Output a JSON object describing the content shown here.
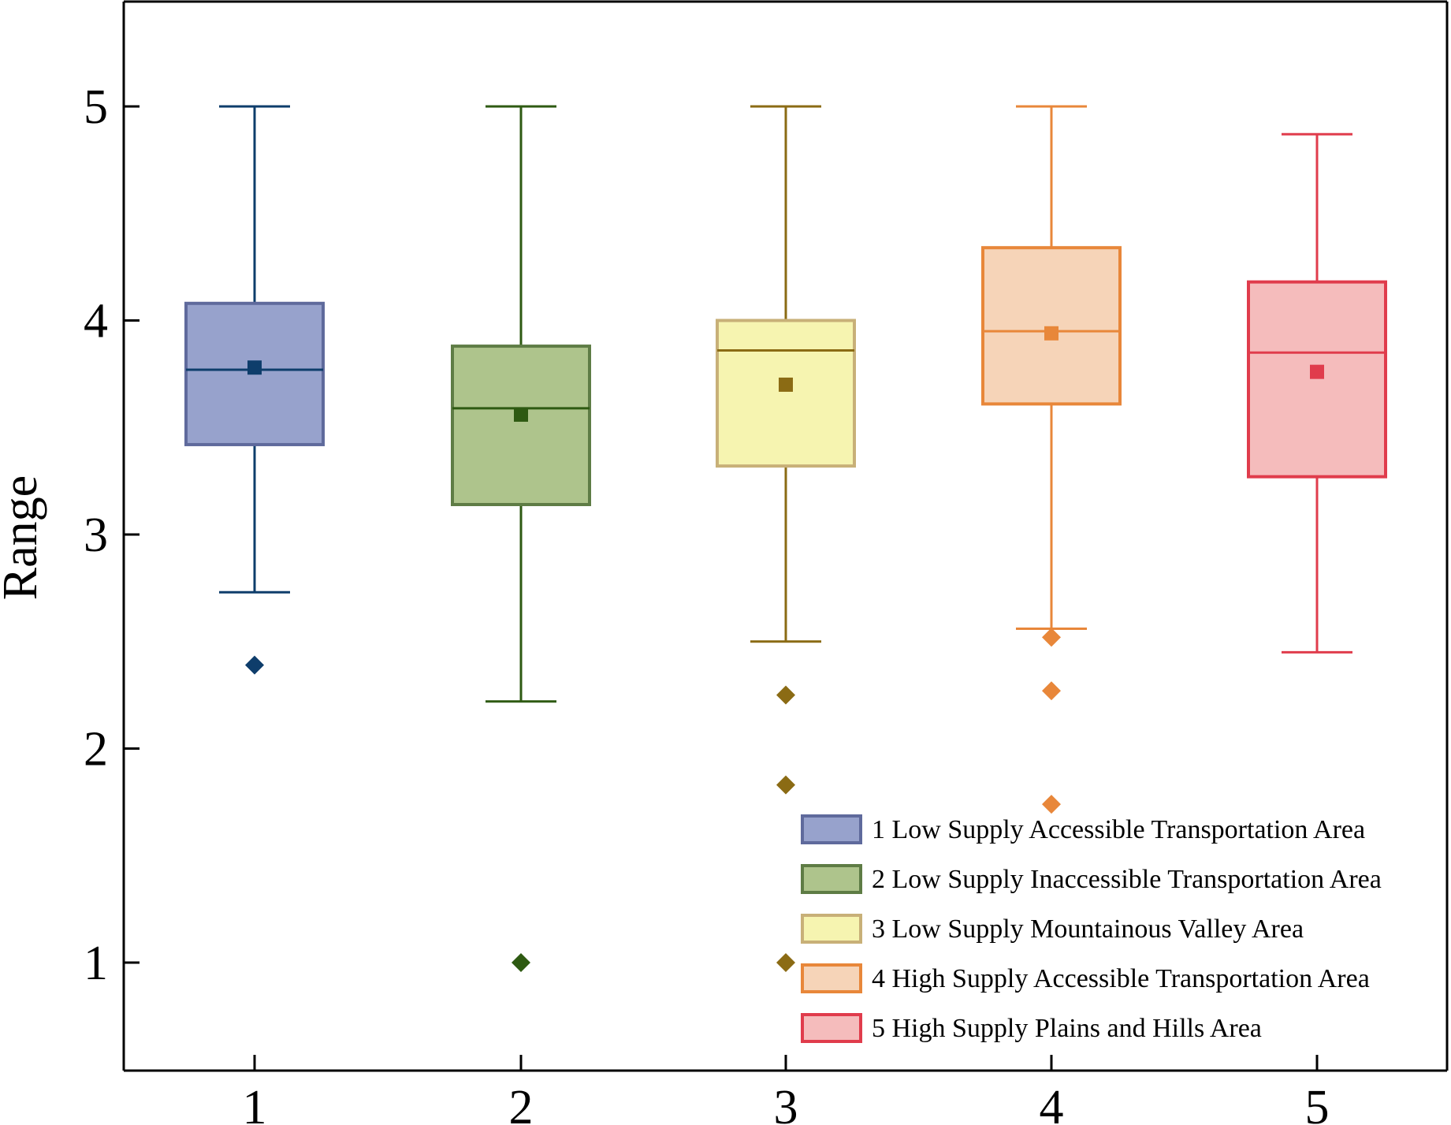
{
  "chart_data": {
    "type": "box",
    "ylabel": "Range",
    "xlabel": "",
    "ylim": [
      0.5,
      5.5
    ],
    "yticks": [
      1,
      2,
      3,
      4,
      5
    ],
    "categories": [
      "1",
      "2",
      "3",
      "4",
      "5"
    ],
    "legend_position": "bottom-right",
    "series": [
      {
        "name": "1 Low Supply Accessible Transportation Area",
        "whisker_low": 2.73,
        "q1": 3.42,
        "median": 3.77,
        "q3": 4.08,
        "whisker_high": 5.0,
        "mean": 3.78,
        "outliers": [
          2.39
        ],
        "stroke": "#0e3d6b",
        "fill": "#97a2cc",
        "legend_stroke": "#5f6a9c"
      },
      {
        "name": "2 Low Supply Inaccessible Transportation Area",
        "whisker_low": 2.22,
        "q1": 3.14,
        "median": 3.59,
        "q3": 3.88,
        "whisker_high": 5.0,
        "mean": 3.56,
        "outliers": [
          1.0
        ],
        "stroke": "#2e5a12",
        "fill": "#aec48c",
        "legend_stroke": "#5e7c45"
      },
      {
        "name": "3 Low Supply Mountainous Valley Area",
        "whisker_low": 2.5,
        "q1": 3.32,
        "median": 3.86,
        "q3": 4.0,
        "whisker_high": 5.0,
        "mean": 3.7,
        "outliers": [
          2.25,
          1.83,
          1.0
        ],
        "stroke": "#8b6b14",
        "fill": "#f6f4b0",
        "legend_stroke": "#c8b078"
      },
      {
        "name": "4 High Supply Accessible Transportation Area",
        "whisker_low": 2.56,
        "q1": 3.61,
        "median": 3.95,
        "q3": 4.34,
        "whisker_high": 5.0,
        "mean": 3.94,
        "outliers": [
          2.52,
          2.27,
          1.74
        ],
        "stroke": "#e8873a",
        "fill": "#f6d4b8",
        "legend_stroke": "#e8873a"
      },
      {
        "name": "5 High Supply Plains and Hills Area",
        "whisker_low": 2.45,
        "q1": 3.27,
        "median": 3.85,
        "q3": 4.18,
        "whisker_high": 4.87,
        "mean": 3.76,
        "outliers": [],
        "stroke": "#e03c4c",
        "fill": "#f5bcbc",
        "legend_stroke": "#e03c4c"
      }
    ]
  }
}
